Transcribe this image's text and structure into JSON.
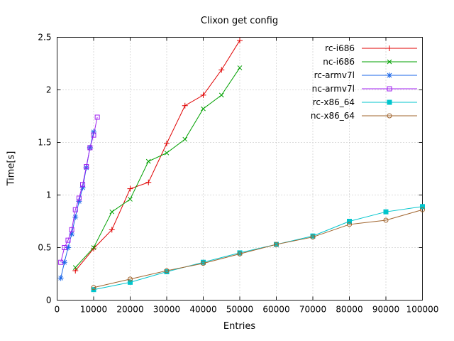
{
  "chart_data": {
    "type": "line",
    "title": "Clixon get config",
    "xlabel": "Entries",
    "ylabel": "Time[s]",
    "xlim": [
      0,
      100000
    ],
    "ylim": [
      0,
      2.5
    ],
    "xticks": [
      0,
      10000,
      20000,
      30000,
      40000,
      50000,
      60000,
      70000,
      80000,
      90000,
      100000
    ],
    "xtick_labels": [
      "0",
      "10000",
      "20000",
      "30000",
      "40000",
      "50000",
      "60000",
      "70000",
      "80000",
      "90000",
      "100000"
    ],
    "yticks": [
      0,
      0.5,
      1,
      1.5,
      2,
      2.5
    ],
    "ytick_labels": [
      "0",
      "0.5",
      "1",
      "1.5",
      "2",
      "2.5"
    ],
    "grid": true,
    "legend_position": "top-right",
    "axis_color": "#1a1a1a",
    "grid_color": "#b8b8b8",
    "text_color": "#000000",
    "background": "#ffffff",
    "series": [
      {
        "name": "rc-i686",
        "color": "#e00000",
        "marker": "plus",
        "points": [
          [
            5000,
            0.28
          ],
          [
            10000,
            0.49
          ],
          [
            15000,
            0.67
          ],
          [
            20000,
            1.06
          ],
          [
            25000,
            1.12
          ],
          [
            30000,
            1.49
          ],
          [
            35000,
            1.85
          ],
          [
            40000,
            1.95
          ],
          [
            45000,
            2.19
          ],
          [
            50000,
            2.47
          ]
        ]
      },
      {
        "name": "nc-i686",
        "color": "#00a000",
        "marker": "cross",
        "points": [
          [
            5000,
            0.31
          ],
          [
            10000,
            0.5
          ],
          [
            15000,
            0.84
          ],
          [
            20000,
            0.96
          ],
          [
            25000,
            1.32
          ],
          [
            30000,
            1.4
          ],
          [
            35000,
            1.53
          ],
          [
            40000,
            1.82
          ],
          [
            45000,
            1.95
          ],
          [
            50000,
            2.21
          ]
        ]
      },
      {
        "name": "rc-armv7l",
        "color": "#1a66e8",
        "marker": "asterisk",
        "points": [
          [
            1000,
            0.21
          ],
          [
            2000,
            0.36
          ],
          [
            3000,
            0.5
          ],
          [
            4000,
            0.63
          ],
          [
            5000,
            0.79
          ],
          [
            6000,
            0.94
          ],
          [
            7000,
            1.07
          ],
          [
            8000,
            1.26
          ],
          [
            9000,
            1.45
          ],
          [
            10000,
            1.6
          ]
        ]
      },
      {
        "name": "nc-armv7l",
        "color": "#a020f0",
        "marker": "square-open",
        "points": [
          [
            1000,
            0.36
          ],
          [
            2000,
            0.5
          ],
          [
            3000,
            0.57
          ],
          [
            4000,
            0.67
          ],
          [
            5000,
            0.86
          ],
          [
            6000,
            0.97
          ],
          [
            7000,
            1.1
          ],
          [
            8000,
            1.27
          ],
          [
            9000,
            1.45
          ],
          [
            10000,
            1.57
          ],
          [
            11000,
            1.74
          ]
        ]
      },
      {
        "name": "rc-x86_64",
        "color": "#00c5cd",
        "marker": "square-filled",
        "points": [
          [
            10000,
            0.1
          ],
          [
            20000,
            0.17
          ],
          [
            30000,
            0.27
          ],
          [
            40000,
            0.36
          ],
          [
            50000,
            0.45
          ],
          [
            60000,
            0.53
          ],
          [
            70000,
            0.61
          ],
          [
            80000,
            0.75
          ],
          [
            90000,
            0.84
          ],
          [
            100000,
            0.89
          ]
        ]
      },
      {
        "name": "nc-x86_64",
        "color": "#a0642d",
        "marker": "circle-open",
        "points": [
          [
            10000,
            0.12
          ],
          [
            20000,
            0.2
          ],
          [
            30000,
            0.28
          ],
          [
            40000,
            0.35
          ],
          [
            50000,
            0.44
          ],
          [
            60000,
            0.53
          ],
          [
            70000,
            0.6
          ],
          [
            80000,
            0.72
          ],
          [
            90000,
            0.76
          ],
          [
            100000,
            0.86
          ]
        ]
      }
    ]
  }
}
